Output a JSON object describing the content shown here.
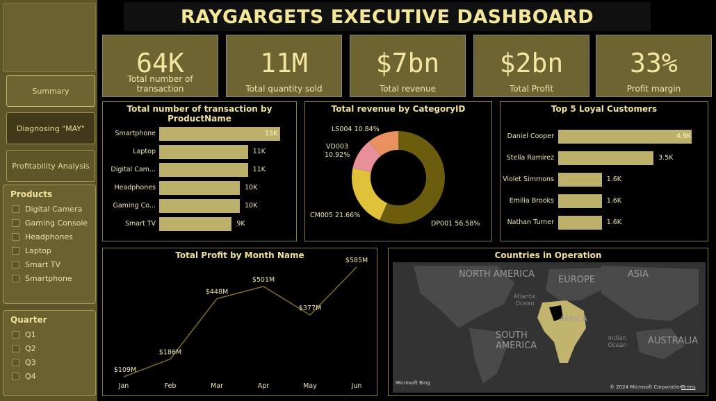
{
  "title": "RAYGARGETS EXECUTIVE DASHBOARD",
  "nav": {
    "summary": "Summary",
    "diagnosing": "Diagnosing \"MAY\"",
    "profitability": "Profitability Analysis"
  },
  "products_filter": {
    "title": "Products",
    "items": [
      "Digital Camera",
      "Gaming Console",
      "Headphones",
      "Laptop",
      "Smart TV",
      "Smartphone"
    ]
  },
  "quarter_filter": {
    "title": "Quarter",
    "items": [
      "Q1",
      "Q2",
      "Q3",
      "Q4"
    ]
  },
  "kpis": [
    {
      "value": "64K",
      "label": "Total number of transaction"
    },
    {
      "value": "11M",
      "label": "Total quantity sold"
    },
    {
      "value": "$7bn",
      "label": "Total revenue"
    },
    {
      "value": "$2bn",
      "label": "Total Profit"
    },
    {
      "value": "33%",
      "label": "Profit margin"
    }
  ],
  "charts": {
    "transactions": {
      "title": "Total number of transaction by ProductName",
      "labels": [
        "Smartphone",
        "Laptop",
        "Digital Cam...",
        "Headphones",
        "Gaming Co...",
        "Smart TV"
      ],
      "value_labels": [
        "15K",
        "11K",
        "11K",
        "10K",
        "10K",
        "9K"
      ]
    },
    "revenue": {
      "title": "Total revenue by CategoryID",
      "labels": [
        "LS004 10.84%",
        "VD003",
        "10.92%",
        "CM005 21.66%",
        "DP001 56.58%"
      ]
    },
    "customers": {
      "title": "Top 5 Loyal Customers",
      "labels": [
        "Daniel Cooper",
        "Stella Ramirez",
        "Violet Simmons",
        "Emilia Brooks",
        "Nathan Turner"
      ],
      "value_labels": [
        "4.9K",
        "3.5K",
        "1.6K",
        "1.6K",
        "1.6K"
      ]
    },
    "profit": {
      "title": "Total Profit by Month Name",
      "months": [
        "Jan",
        "Feb",
        "Mar",
        "Apr",
        "May",
        "Jun"
      ],
      "value_labels": [
        "$109M",
        "$186M",
        "$448M",
        "$501M",
        "$377M",
        "$585M"
      ]
    },
    "map": {
      "title": "Countries in Operation",
      "regions": [
        "NORTH AMERICA",
        "EUROPE",
        "ASIA",
        "SOUTH AMERICA",
        "AUSTRALIA"
      ],
      "oceans": [
        "Atlantic Ocean",
        "Indian Ocean"
      ],
      "africa": "AFRICA",
      "credit": "© 2024 Microsoft Corporation",
      "terms": "Terms",
      "logo": "Microsoft Bing"
    }
  },
  "chart_data": [
    {
      "type": "bar",
      "title": "Total number of transaction by ProductName",
      "categories": [
        "Smartphone",
        "Laptop",
        "Digital Camera",
        "Headphones",
        "Gaming Console",
        "Smart TV"
      ],
      "values": [
        15000,
        11000,
        11000,
        10000,
        10000,
        9000
      ]
    },
    {
      "type": "pie",
      "title": "Total revenue by CategoryID",
      "categories": [
        "DP001",
        "CM005",
        "VD003",
        "LS004"
      ],
      "values": [
        56.58,
        21.66,
        10.92,
        10.84
      ],
      "colors": [
        "#6b5d0d",
        "#e0c23a",
        "#e8909a",
        "#e89060"
      ]
    },
    {
      "type": "bar",
      "title": "Top 5 Loyal Customers",
      "categories": [
        "Daniel Cooper",
        "Stella Ramirez",
        "Violet Simmons",
        "Emilia Brooks",
        "Nathan Turner"
      ],
      "values": [
        4900,
        3500,
        1600,
        1600,
        1600
      ]
    },
    {
      "type": "line",
      "title": "Total Profit by Month Name",
      "categories": [
        "Jan",
        "Feb",
        "Mar",
        "Apr",
        "May",
        "Jun"
      ],
      "values": [
        109,
        186,
        448,
        501,
        377,
        585
      ]
    }
  ],
  "colors": {
    "accent": "#6d6432",
    "bar": "#bdb06a",
    "line": "#7a6a2a"
  }
}
